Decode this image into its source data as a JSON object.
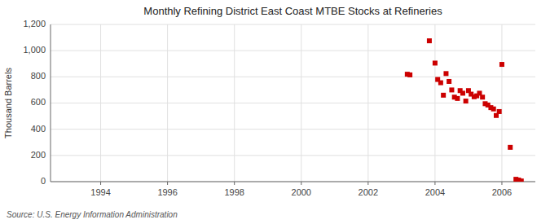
{
  "chart_data": {
    "type": "scatter",
    "title": "Monthly Refining District East Coast MTBE Stocks at Refineries",
    "ylabel": "Thousand Barrels",
    "annotations": [
      "Source: U.S. Energy Information Administration"
    ],
    "color": "#cc0000",
    "marker": "square",
    "grid": true,
    "xlim": [
      1992.5,
      2007.0
    ],
    "ylim": [
      0,
      1200
    ],
    "xticks": [
      1994,
      1996,
      1998,
      2000,
      2002,
      2004,
      2006
    ],
    "yticks": [
      0,
      200,
      400,
      600,
      800,
      {
        "value": 1000,
        "label": "1,000"
      },
      {
        "value": 1200,
        "label": "1,200"
      }
    ],
    "x": [
      2003.17,
      2003.25,
      2003.83,
      2004.0,
      2004.08,
      2004.17,
      2004.25,
      2004.33,
      2004.42,
      2004.5,
      2004.58,
      2004.67,
      2004.75,
      2004.83,
      2004.92,
      2005.0,
      2005.08,
      2005.17,
      2005.25,
      2005.33,
      2005.42,
      2005.5,
      2005.58,
      2005.67,
      2005.75,
      2005.83,
      2005.92,
      2006.0,
      2006.25,
      2006.42,
      2006.5,
      2006.58
    ],
    "values": [
      820,
      815,
      1075,
      905,
      780,
      755,
      660,
      825,
      765,
      700,
      645,
      635,
      695,
      675,
      615,
      695,
      668,
      648,
      655,
      675,
      645,
      595,
      585,
      565,
      555,
      505,
      535,
      895,
      262,
      18,
      12,
      5
    ]
  }
}
